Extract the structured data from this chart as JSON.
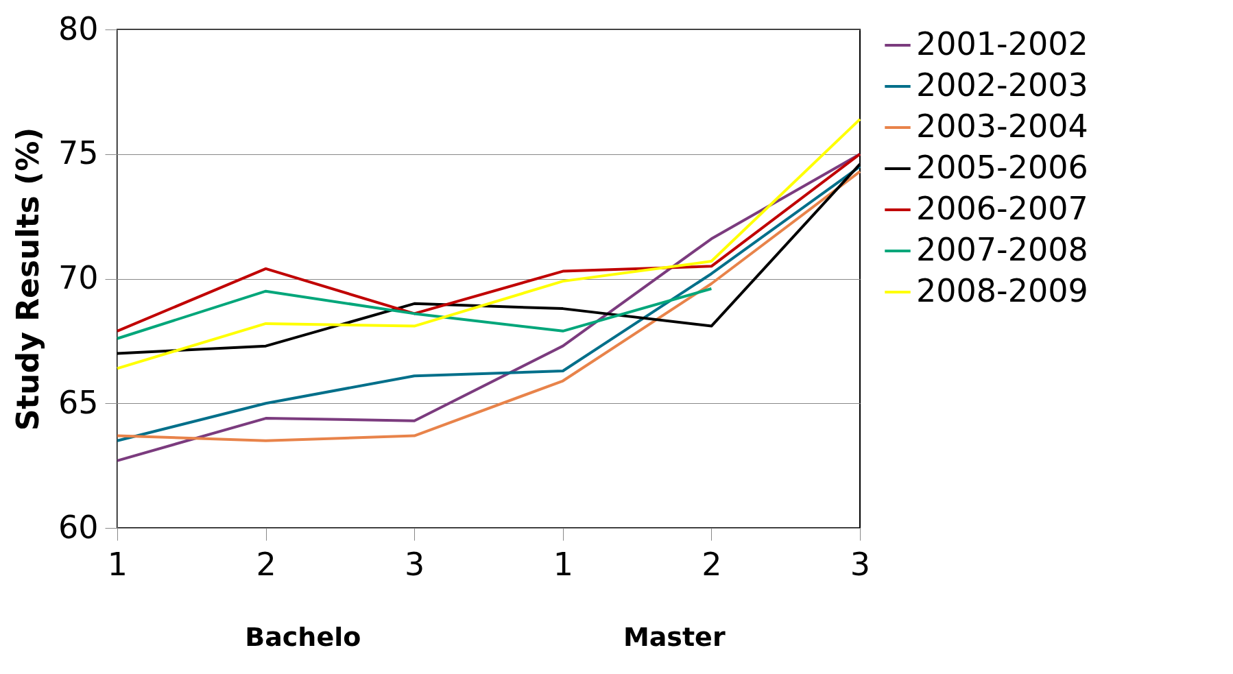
{
  "chart_data": {
    "type": "line",
    "ylabel": "Study Results (%)",
    "categories": [
      "1",
      "2",
      "3",
      "1",
      "2",
      "3"
    ],
    "series": [
      {
        "name": "2001-2002",
        "color": "#7b3b7e",
        "values": [
          62.7,
          64.4,
          64.3,
          67.3,
          71.6,
          75.0
        ]
      },
      {
        "name": "2002-2003",
        "color": "#006f8a",
        "values": [
          63.5,
          65.0,
          66.1,
          66.3,
          70.2,
          74.5
        ]
      },
      {
        "name": "2003-2004",
        "color": "#e8834a",
        "values": [
          63.7,
          63.5,
          63.7,
          65.9,
          69.8,
          74.3
        ]
      },
      {
        "name": "2005-2006",
        "color": "#000000",
        "values": [
          67.0,
          67.3,
          69.0,
          68.8,
          68.1,
          74.6
        ]
      },
      {
        "name": "2006-2007",
        "color": "#c00000",
        "values": [
          67.9,
          70.4,
          68.6,
          70.3,
          70.5,
          75.0
        ]
      },
      {
        "name": "2007-2008",
        "color": "#00a67a",
        "values": [
          67.6,
          69.5,
          68.6,
          67.9,
          69.6,
          null
        ]
      },
      {
        "name": "2008-2009",
        "color": "#ffff00",
        "values": [
          66.4,
          68.2,
          68.1,
          69.9,
          70.7,
          76.4
        ]
      }
    ],
    "ylim": [
      60,
      80
    ],
    "yticks": [
      60,
      65,
      70,
      75,
      80
    ],
    "grid": "y",
    "legend": "right",
    "marker": "none",
    "line_style": "solid",
    "annotations": [
      "Bachelo",
      "Master"
    ]
  }
}
